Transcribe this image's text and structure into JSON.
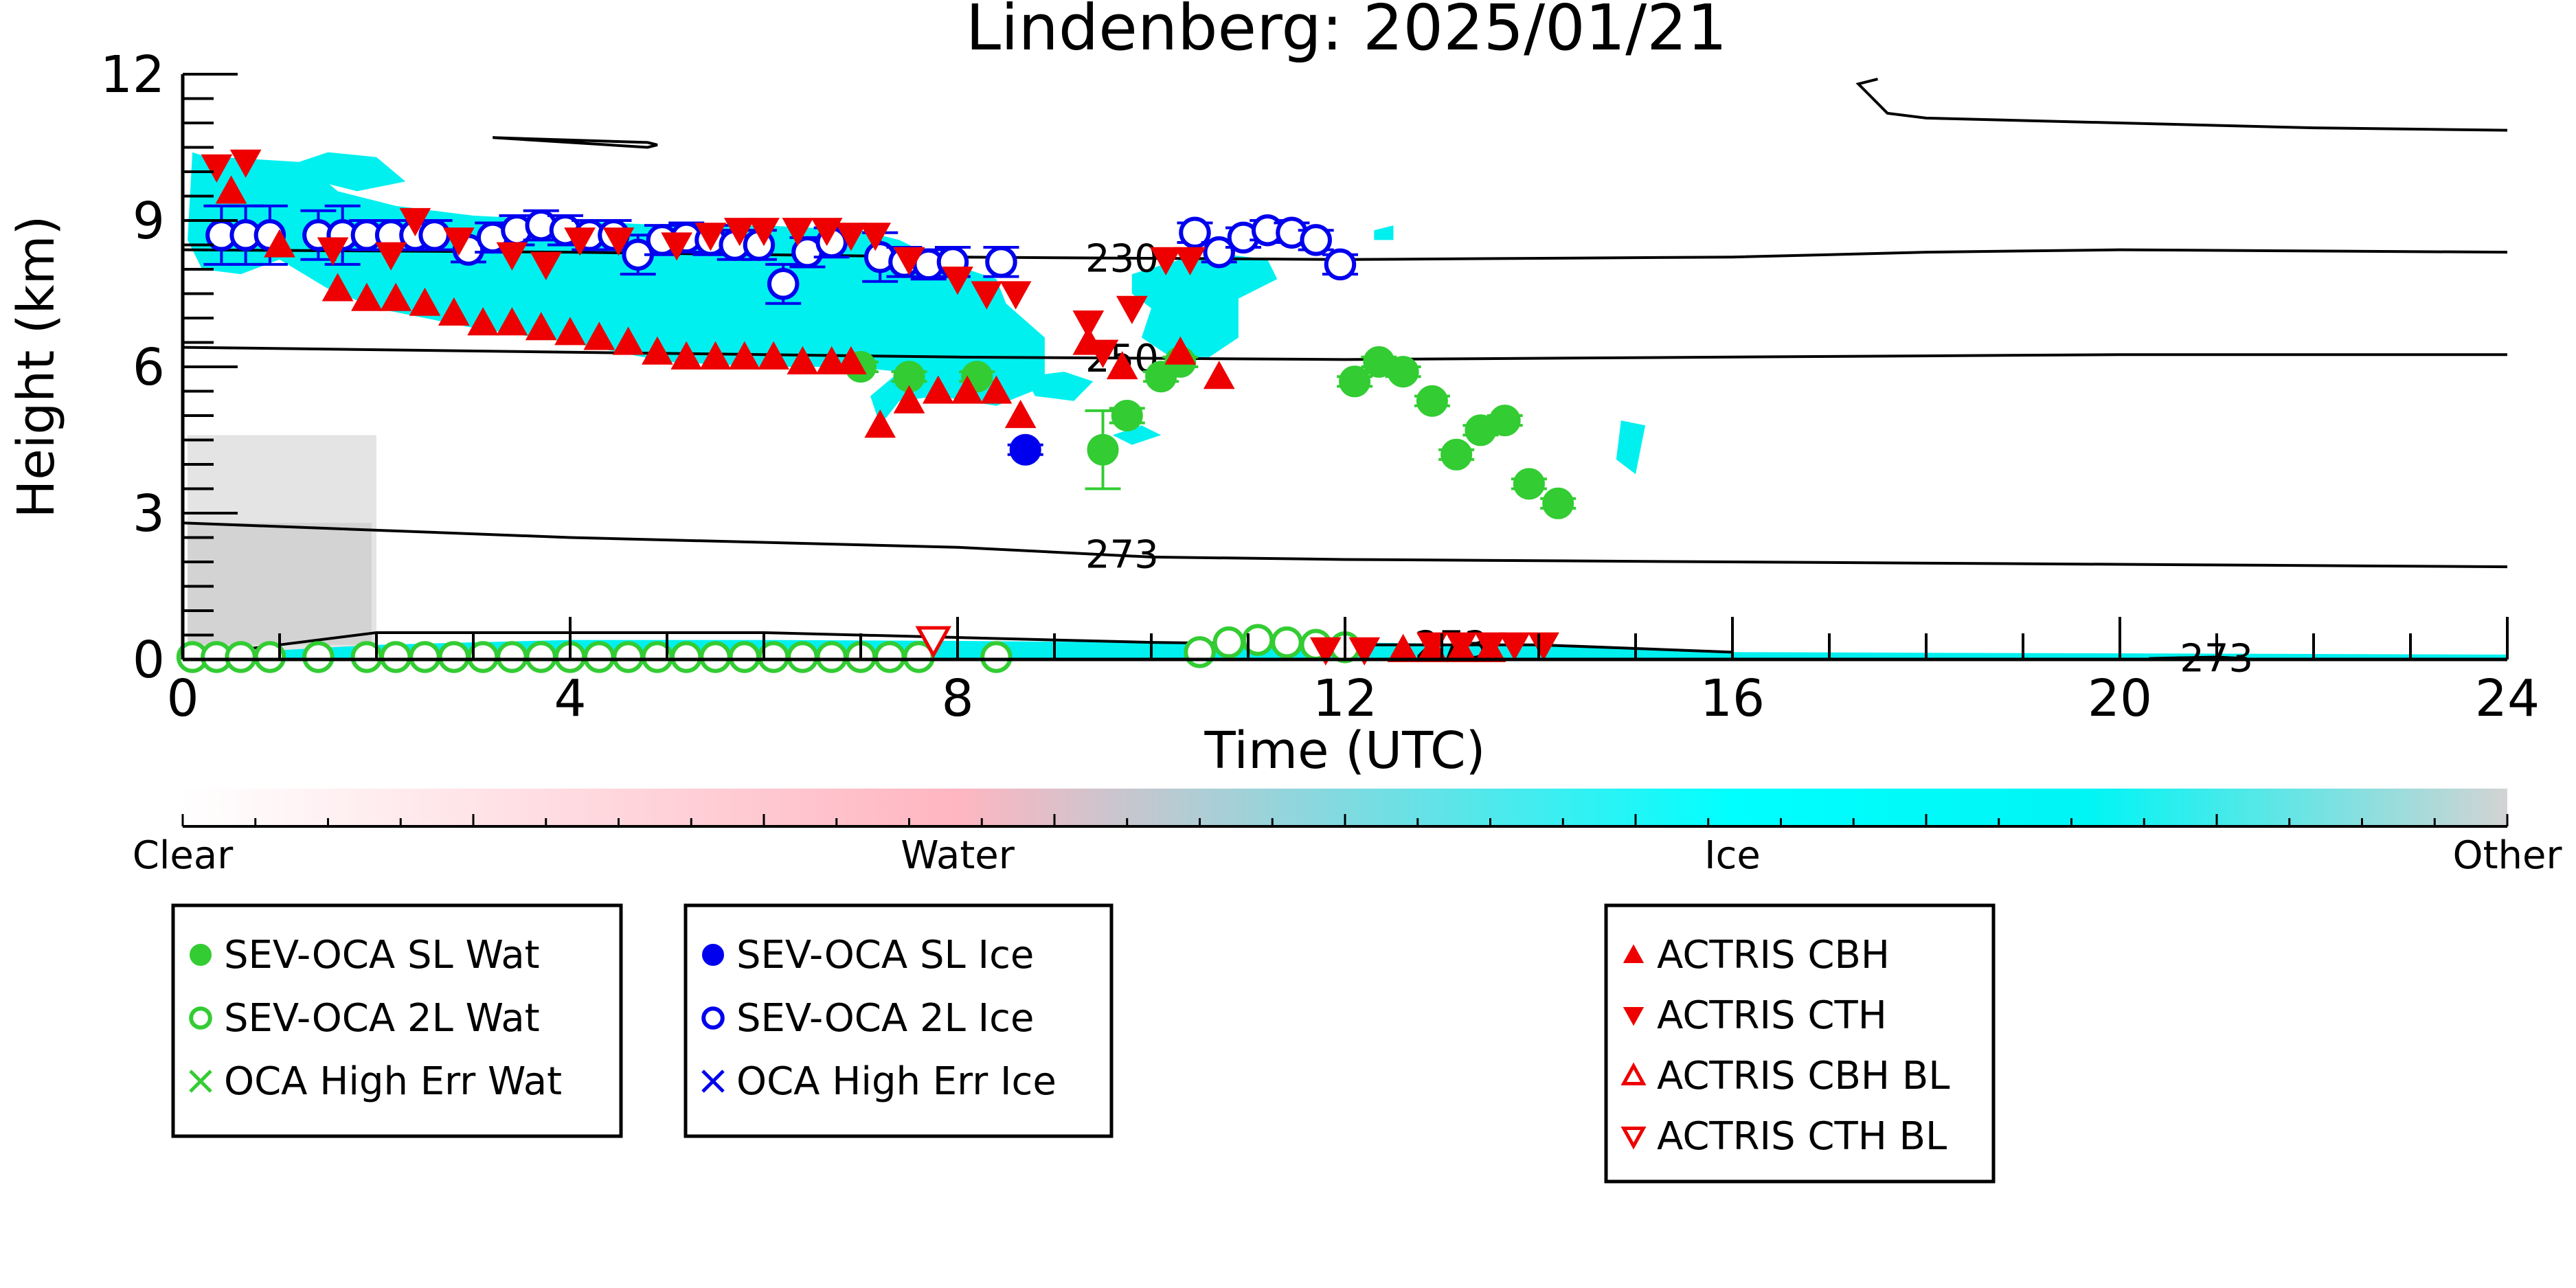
{
  "chart_data": {
    "type": "scatter",
    "title": "Lindenberg: 2025/01/21",
    "xlabel": "Time (UTC)",
    "ylabel": "Height (km)",
    "xlim": [
      0,
      24
    ],
    "ylim": [
      0,
      12
    ],
    "xticks": [
      "0",
      "4",
      "8",
      "12",
      "16",
      "20",
      "24"
    ],
    "yticks": [
      "0",
      "3",
      "6",
      "9",
      "12"
    ],
    "grid": false,
    "colorbar": {
      "labels": [
        "Clear",
        "Water",
        "Ice",
        "Other"
      ],
      "colors": [
        "#ffffff",
        "#ffb6c1",
        "#00ffff",
        "#d3d3d3"
      ]
    },
    "temperature_contours": [
      {
        "label": "230",
        "label_x": 9.4,
        "points": [
          [
            0,
            8.4
          ],
          [
            4,
            8.35
          ],
          [
            8,
            8.25
          ],
          [
            12,
            8.2
          ],
          [
            16,
            8.25
          ],
          [
            18,
            8.35
          ],
          [
            20,
            8.4
          ],
          [
            24,
            8.35
          ]
        ]
      },
      {
        "label": "250",
        "label_x": 9.4,
        "points": [
          [
            0,
            6.4
          ],
          [
            4,
            6.3
          ],
          [
            8,
            6.2
          ],
          [
            12,
            6.15
          ],
          [
            16,
            6.2
          ],
          [
            20,
            6.25
          ],
          [
            24,
            6.25
          ]
        ]
      },
      {
        "label": "273",
        "label_x": 9.4,
        "points": [
          [
            0,
            2.8
          ],
          [
            4,
            2.5
          ],
          [
            8,
            2.3
          ],
          [
            10,
            2.1
          ],
          [
            12,
            2.05
          ],
          [
            16,
            2.0
          ],
          [
            20,
            1.95
          ],
          [
            24,
            1.9
          ]
        ]
      },
      {
        "label": "273",
        "label_x": 12.8,
        "points": [
          [
            0,
            0.05
          ],
          [
            1,
            0.3
          ],
          [
            2,
            0.55
          ],
          [
            4,
            0.55
          ],
          [
            6,
            0.55
          ],
          [
            8,
            0.45
          ],
          [
            10,
            0.35
          ],
          [
            12,
            0.3
          ],
          [
            14,
            0.3
          ],
          [
            16,
            0.15
          ]
        ]
      },
      {
        "label": "273",
        "label_x": 20.7,
        "points": [
          [
            20.3,
            0.02
          ],
          [
            21,
            0.05
          ],
          [
            21.3,
            0.02
          ]
        ]
      },
      {
        "label": "",
        "label_x": null,
        "points": [
          [
            3.2,
            10.7
          ],
          [
            4,
            10.6
          ],
          [
            4.8,
            10.5
          ],
          [
            4.9,
            10.55
          ],
          [
            4.8,
            10.6
          ],
          [
            4,
            10.65
          ],
          [
            3.2,
            10.7
          ]
        ]
      },
      {
        "label": "",
        "label_x": null,
        "points": [
          [
            17.5,
            11.9
          ],
          [
            17.3,
            11.8
          ],
          [
            17.4,
            11.6
          ],
          [
            17.6,
            11.2
          ],
          [
            18,
            11.1
          ],
          [
            20,
            11.0
          ],
          [
            22,
            10.9
          ],
          [
            24,
            10.85
          ]
        ]
      }
    ],
    "series": [
      {
        "name": "SEV-OCA SL Wat",
        "marker": "filled-circle",
        "color": "#33cc33",
        "points": [
          [
            7.0,
            6.0
          ],
          [
            7.5,
            5.8
          ],
          [
            8.2,
            5.8
          ],
          [
            9.5,
            4.3
          ],
          [
            9.75,
            5.0
          ],
          [
            10.1,
            5.8
          ],
          [
            10.3,
            6.1
          ],
          [
            12.1,
            5.7
          ],
          [
            12.35,
            6.1
          ],
          [
            12.6,
            5.9
          ],
          [
            12.9,
            5.3
          ],
          [
            13.15,
            4.2
          ],
          [
            13.4,
            4.7
          ],
          [
            13.65,
            4.9
          ],
          [
            13.9,
            3.6
          ],
          [
            14.2,
            3.2
          ]
        ],
        "errors": [
          0.1,
          0.1,
          0.1,
          0.8,
          0.15,
          0.1,
          0.1,
          0.1,
          0.1,
          0.1,
          0.1,
          0.1,
          0.1,
          0.1,
          0.1,
          0.1
        ]
      },
      {
        "name": "SEV-OCA 2L Wat",
        "marker": "open-circle",
        "color": "#33cc33",
        "points": [
          [
            0.1,
            0.05
          ],
          [
            0.35,
            0.05
          ],
          [
            0.6,
            0.05
          ],
          [
            0.9,
            0.05
          ],
          [
            1.4,
            0.05
          ],
          [
            1.9,
            0.05
          ],
          [
            2.2,
            0.05
          ],
          [
            2.5,
            0.05
          ],
          [
            2.8,
            0.05
          ],
          [
            3.1,
            0.05
          ],
          [
            3.4,
            0.05
          ],
          [
            3.7,
            0.05
          ],
          [
            4.0,
            0.05
          ],
          [
            4.3,
            0.05
          ],
          [
            4.6,
            0.05
          ],
          [
            4.9,
            0.05
          ],
          [
            5.2,
            0.05
          ],
          [
            5.5,
            0.05
          ],
          [
            5.8,
            0.05
          ],
          [
            6.1,
            0.05
          ],
          [
            6.4,
            0.05
          ],
          [
            6.7,
            0.05
          ],
          [
            7.0,
            0.05
          ],
          [
            7.3,
            0.05
          ],
          [
            7.6,
            0.05
          ],
          [
            8.4,
            0.05
          ],
          [
            10.5,
            0.15
          ],
          [
            10.8,
            0.35
          ],
          [
            11.1,
            0.4
          ],
          [
            11.4,
            0.35
          ],
          [
            11.7,
            0.3
          ],
          [
            12.0,
            0.25
          ]
        ],
        "errors": []
      },
      {
        "name": "OCA High Err Wat",
        "marker": "x",
        "color": "#33cc33",
        "points": [],
        "errors": []
      },
      {
        "name": "SEV-OCA SL Ice",
        "marker": "filled-circle",
        "color": "#0000ee",
        "points": [
          [
            8.7,
            4.3
          ]
        ],
        "errors": [
          0.1
        ]
      },
      {
        "name": "SEV-OCA 2L Ice",
        "marker": "open-circle",
        "color": "#0000ee",
        "points": [
          [
            0.4,
            8.7
          ],
          [
            0.65,
            8.7
          ],
          [
            0.9,
            8.7
          ],
          [
            1.4,
            8.7
          ],
          [
            1.65,
            8.7
          ],
          [
            1.9,
            8.7
          ],
          [
            2.15,
            8.7
          ],
          [
            2.4,
            8.7
          ],
          [
            2.6,
            8.7
          ],
          [
            2.95,
            8.4
          ],
          [
            3.2,
            8.65
          ],
          [
            3.45,
            8.8
          ],
          [
            3.7,
            8.9
          ],
          [
            3.95,
            8.8
          ],
          [
            4.2,
            8.7
          ],
          [
            4.45,
            8.7
          ],
          [
            4.7,
            8.3
          ],
          [
            4.95,
            8.6
          ],
          [
            5.2,
            8.65
          ],
          [
            5.45,
            8.6
          ],
          [
            5.7,
            8.5
          ],
          [
            5.95,
            8.5
          ],
          [
            6.2,
            7.7
          ],
          [
            6.45,
            8.35
          ],
          [
            6.7,
            8.55
          ],
          [
            7.2,
            8.25
          ],
          [
            7.45,
            8.15
          ],
          [
            7.7,
            8.1
          ],
          [
            7.95,
            8.15
          ],
          [
            8.45,
            8.15
          ],
          [
            10.45,
            8.75
          ],
          [
            10.7,
            8.35
          ],
          [
            10.95,
            8.65
          ],
          [
            11.2,
            8.8
          ],
          [
            11.45,
            8.75
          ],
          [
            11.7,
            8.6
          ],
          [
            11.95,
            8.1
          ]
        ],
        "errors": [
          0.6,
          0.6,
          0.6,
          0.5,
          0.6,
          0.3,
          0.3,
          0.3,
          0.3,
          0.25,
          0.3,
          0.3,
          0.3,
          0.3,
          0.3,
          0.3,
          0.4,
          0.3,
          0.3,
          0.3,
          0.3,
          0.3,
          0.4,
          0.3,
          0.3,
          0.5,
          0.3,
          0.3,
          0.3,
          0.3,
          0.2,
          0.2,
          0.2,
          0.2,
          0.2,
          0.2,
          0.2
        ]
      },
      {
        "name": "OCA High Err Ice",
        "marker": "x",
        "color": "#0000ee",
        "points": [],
        "errors": []
      },
      {
        "name": "ACTRIS CBH",
        "marker": "triangle-up",
        "color": "#ee0000",
        "points": [
          [
            0.5,
            9.6
          ],
          [
            1.0,
            8.5
          ],
          [
            1.6,
            7.6
          ],
          [
            1.9,
            7.4
          ],
          [
            2.2,
            7.4
          ],
          [
            2.5,
            7.3
          ],
          [
            2.8,
            7.1
          ],
          [
            3.1,
            6.9
          ],
          [
            3.4,
            6.9
          ],
          [
            3.7,
            6.8
          ],
          [
            4.0,
            6.7
          ],
          [
            4.3,
            6.6
          ],
          [
            4.6,
            6.5
          ],
          [
            4.9,
            6.3
          ],
          [
            5.2,
            6.2
          ],
          [
            5.5,
            6.2
          ],
          [
            5.8,
            6.2
          ],
          [
            6.1,
            6.2
          ],
          [
            6.4,
            6.1
          ],
          [
            6.7,
            6.1
          ],
          [
            6.9,
            6.1
          ],
          [
            7.2,
            4.8
          ],
          [
            7.5,
            5.3
          ],
          [
            7.8,
            5.5
          ],
          [
            8.1,
            5.5
          ],
          [
            8.4,
            5.5
          ],
          [
            8.65,
            5.0
          ],
          [
            9.35,
            6.5
          ],
          [
            9.7,
            6.0
          ],
          [
            10.3,
            6.3
          ],
          [
            10.7,
            5.8
          ],
          [
            12.6,
            0.2
          ],
          [
            12.9,
            0.2
          ],
          [
            13.2,
            0.2
          ],
          [
            13.5,
            0.2
          ]
        ]
      },
      {
        "name": "ACTRIS CTH",
        "marker": "triangle-down",
        "color": "#ee0000",
        "points": [
          [
            0.35,
            10.1
          ],
          [
            0.65,
            10.2
          ],
          [
            1.55,
            8.4
          ],
          [
            2.15,
            8.3
          ],
          [
            2.4,
            9.0
          ],
          [
            2.85,
            8.6
          ],
          [
            3.4,
            8.3
          ],
          [
            3.75,
            8.1
          ],
          [
            4.1,
            8.6
          ],
          [
            4.5,
            8.6
          ],
          [
            5.1,
            8.5
          ],
          [
            5.45,
            8.7
          ],
          [
            5.75,
            8.8
          ],
          [
            6.0,
            8.8
          ],
          [
            6.35,
            8.8
          ],
          [
            6.65,
            8.8
          ],
          [
            6.9,
            8.7
          ],
          [
            7.15,
            8.7
          ],
          [
            7.5,
            8.2
          ],
          [
            8.0,
            7.8
          ],
          [
            8.3,
            7.5
          ],
          [
            8.6,
            7.5
          ],
          [
            9.35,
            6.9
          ],
          [
            9.5,
            6.3
          ],
          [
            9.8,
            7.2
          ],
          [
            10.15,
            8.2
          ],
          [
            10.4,
            8.2
          ],
          [
            11.8,
            0.2
          ],
          [
            12.2,
            0.2
          ],
          [
            12.9,
            0.3
          ],
          [
            13.2,
            0.3
          ],
          [
            13.5,
            0.3
          ],
          [
            13.75,
            0.3
          ],
          [
            14.05,
            0.3
          ]
        ]
      },
      {
        "name": "ACTRIS CBH BL",
        "marker": "open-triangle-up",
        "color": "#ee0000",
        "points": []
      },
      {
        "name": "ACTRIS CTH BL",
        "marker": "open-triangle-down",
        "color": "#ee0000",
        "points": [
          [
            7.75,
            0.4
          ]
        ]
      }
    ],
    "legends": [
      [
        "SEV-OCA SL Wat",
        "SEV-OCA 2L Wat",
        "OCA High Err Wat"
      ],
      [
        "SEV-OCA SL Ice",
        "SEV-OCA 2L Ice",
        "OCA High Err Ice"
      ],
      [
        "ACTRIS CBH",
        "ACTRIS CTH",
        "ACTRIS CBH BL",
        "ACTRIS CTH BL"
      ]
    ]
  }
}
